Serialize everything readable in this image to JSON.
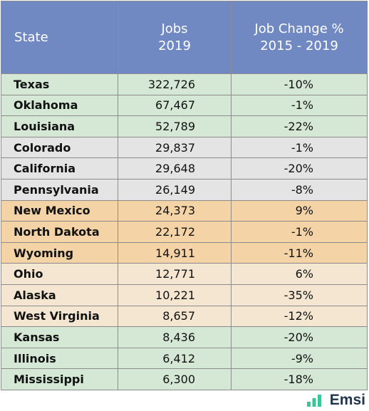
{
  "header": {
    "state": "State",
    "jobs_line1": "Jobs",
    "jobs_line2": "2019",
    "change_line1": "Job Change %",
    "change_line2": "2015 - 2019"
  },
  "rows": [
    {
      "state": "Texas",
      "jobs": "322,726",
      "change": "-10%",
      "group": "green"
    },
    {
      "state": "Oklahoma",
      "jobs": "67,467",
      "change": "-1%",
      "group": "green"
    },
    {
      "state": "Louisiana",
      "jobs": "52,789",
      "change": "-22%",
      "group": "green"
    },
    {
      "state": "Colorado",
      "jobs": "29,837",
      "change": "-1%",
      "group": "gray"
    },
    {
      "state": "California",
      "jobs": "29,648",
      "change": "-20%",
      "group": "gray"
    },
    {
      "state": "Pennsylvania",
      "jobs": "26,149",
      "change": "-8%",
      "group": "gray"
    },
    {
      "state": "New Mexico",
      "jobs": "24,373",
      "change": "9%",
      "group": "orange"
    },
    {
      "state": "North Dakota",
      "jobs": "22,172",
      "change": "-1%",
      "group": "orange"
    },
    {
      "state": "Wyoming",
      "jobs": "14,911",
      "change": "-11%",
      "group": "orange"
    },
    {
      "state": "Ohio",
      "jobs": "12,771",
      "change": "6%",
      "group": "cream"
    },
    {
      "state": "Alaska",
      "jobs": "10,221",
      "change": "-35%",
      "group": "cream"
    },
    {
      "state": "West Virginia",
      "jobs": "8,657",
      "change": "-12%",
      "group": "cream"
    },
    {
      "state": "Kansas",
      "jobs": "8,436",
      "change": "-20%",
      "group": "green"
    },
    {
      "state": "Illinois",
      "jobs": "6,412",
      "change": "-9%",
      "group": "green"
    },
    {
      "state": "Mississippi",
      "jobs": "6,300",
      "change": "-18%",
      "group": "green"
    }
  ],
  "colors": {
    "header": "#7189c2",
    "green": "#d5e8d6",
    "gray": "#e4e4e4",
    "orange": "#f4d4a6",
    "cream": "#f4e6d0",
    "logo_text": "#21364c",
    "logo_mark": "#3cc49a"
  },
  "logo": {
    "text": "Emsi",
    "icon": "bar-chart-icon"
  }
}
